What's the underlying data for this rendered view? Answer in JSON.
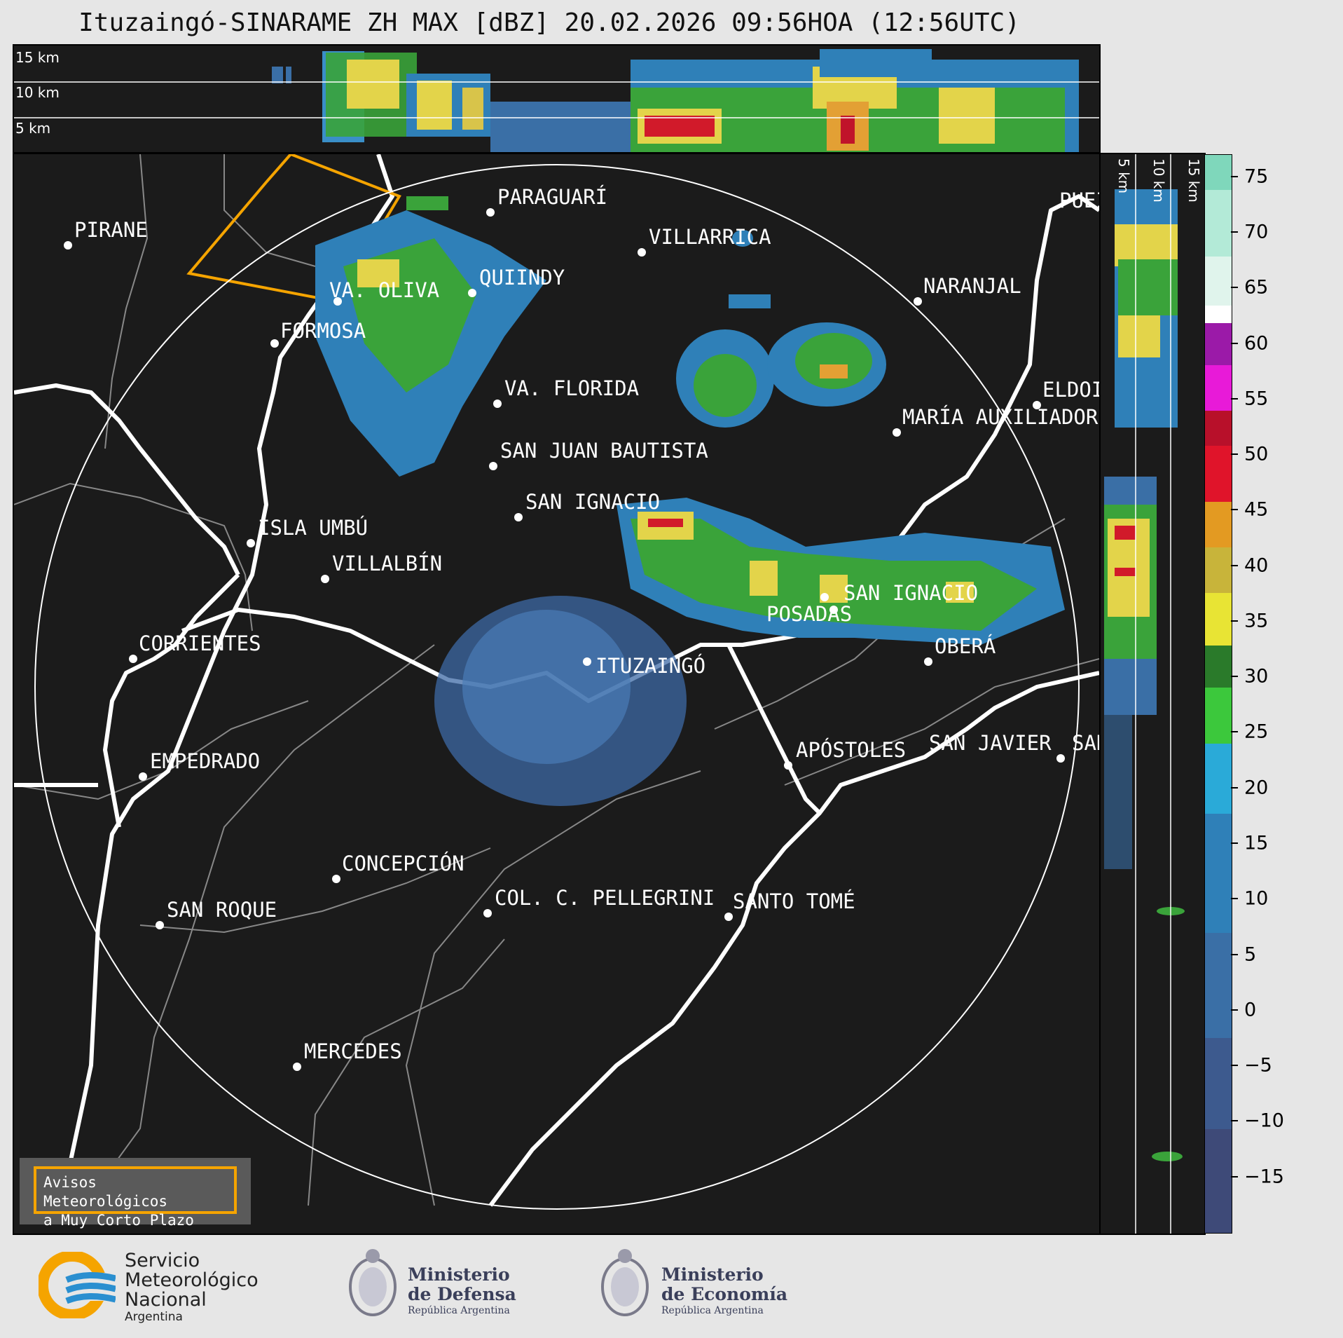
{
  "title": "Ituzaingó-SINARAME ZH MAX [dBZ] 20.02.2026 09:56HOA (12:56UTC)",
  "top_panel": {
    "height_labels": [
      "15 km",
      "10 km",
      "5 km"
    ]
  },
  "side_panel": {
    "height_labels": [
      "5 km",
      "10 km",
      "15 km"
    ]
  },
  "colorbar": {
    "unit": "dBZ",
    "tick_labels": [
      "75",
      "70",
      "65",
      "60",
      "55",
      "50",
      "45",
      "40",
      "35",
      "30",
      "25",
      "20",
      "15",
      "10",
      "5",
      "0",
      "−5",
      "−10",
      "−15"
    ],
    "range": [
      -20,
      77
    ]
  },
  "cities": [
    {
      "name": "PIRANE"
    },
    {
      "name": "PARAGUARÍ"
    },
    {
      "name": "VILLARRICA"
    },
    {
      "name": "QUIINDY"
    },
    {
      "name": "VA. OLIVA"
    },
    {
      "name": "NARANJAL"
    },
    {
      "name": "FORMOSA"
    },
    {
      "name": "VA. FLORIDA"
    },
    {
      "name": "ELDOI"
    },
    {
      "name": "MARÍA AUXILIADOR"
    },
    {
      "name": "SAN JUAN BAUTISTA"
    },
    {
      "name": "SAN IGNACIO"
    },
    {
      "name": "ISLA UMBÚ"
    },
    {
      "name": "VILLALBÍN"
    },
    {
      "name": "SAN IGNACIO"
    },
    {
      "name": "POSADAS"
    },
    {
      "name": "CORRIENTES"
    },
    {
      "name": "ITUZAINGÓ"
    },
    {
      "name": "OBERÁ"
    },
    {
      "name": "EMPEDRADO"
    },
    {
      "name": "APÓSTOLES"
    },
    {
      "name": "SAN JAVIER"
    },
    {
      "name": "SAN"
    },
    {
      "name": "CONCEPCIÓN"
    },
    {
      "name": "SAN ROQUE"
    },
    {
      "name": "COL. C. PELLEGRINI"
    },
    {
      "name": "SANTO TOMÉ"
    },
    {
      "name": "MERCEDES"
    },
    {
      "name": "PUEI"
    }
  ],
  "warning_box": {
    "line1": "Avisos Meteorológicos",
    "line2": "a Muy Corto Plazo"
  },
  "logos": {
    "smn": {
      "line1": "Servicio",
      "line2": "Meteorológico",
      "line3": "Nacional",
      "line4": "Argentina"
    },
    "defensa": {
      "line1": "Ministerio",
      "line2": "de Defensa",
      "line3": "República Argentina"
    },
    "economia": {
      "line1": "Ministerio",
      "line2": "de Economía",
      "line3": "República Argentina"
    }
  },
  "colors": {
    "background": "#1b1b1b",
    "rivers": "#ffffff",
    "boundaries": "#888888",
    "warning_polygon": "#f5a400"
  }
}
